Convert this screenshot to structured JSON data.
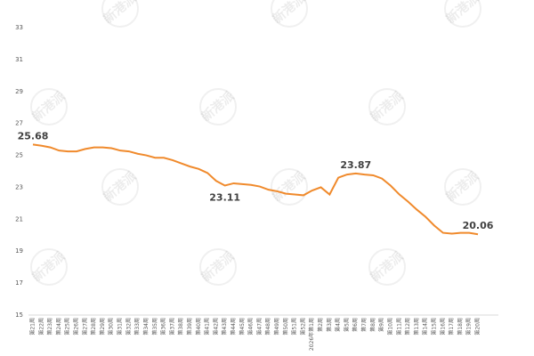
{
  "chart_data": {
    "type": "line",
    "watermark": "新港派",
    "categories": [
      "第21周",
      "第22周",
      "第23周",
      "第24周",
      "第25周",
      "第26周",
      "第27周",
      "第28周",
      "第29周",
      "第30周",
      "第31周",
      "第32周",
      "第33周",
      "第34周",
      "第35周",
      "第36周",
      "第37周",
      "第38周",
      "第39周",
      "第40周",
      "第41周",
      "第42周",
      "第43周",
      "第44周",
      "第45周",
      "第46周",
      "第47周",
      "第48周",
      "第49周",
      "第50周",
      "第51周",
      "第52周",
      "2026年第1周",
      "第2周",
      "第3周",
      "第4周",
      "第5周",
      "第6周",
      "第7周",
      "第8周",
      "第9周",
      "第10周",
      "第11周",
      "第12周",
      "第13周",
      "第14周",
      "第15周",
      "第16周",
      "第17周",
      "第18周",
      "第19周",
      "第20周"
    ],
    "series": [
      {
        "color": "#f08a2c",
        "values": [
          25.68,
          25.6,
          25.5,
          25.3,
          25.25,
          25.25,
          25.4,
          25.5,
          25.5,
          25.45,
          25.3,
          25.25,
          25.1,
          25.0,
          24.85,
          24.85,
          24.7,
          24.5,
          24.3,
          24.15,
          23.9,
          23.4,
          23.11,
          23.25,
          23.2,
          23.15,
          23.05,
          22.85,
          22.75,
          22.6,
          22.55,
          22.5,
          22.8,
          23.0,
          22.55,
          23.6,
          23.8,
          23.87,
          23.8,
          23.75,
          23.55,
          23.1,
          22.55,
          22.1,
          21.6,
          21.15,
          20.6,
          20.15,
          20.1,
          20.15,
          20.15,
          20.06
        ],
        "value_labels": [
          "25.68",
          null,
          null,
          null,
          null,
          null,
          null,
          null,
          null,
          null,
          null,
          null,
          null,
          null,
          null,
          null,
          null,
          null,
          null,
          null,
          null,
          null,
          "23.11",
          null,
          null,
          null,
          null,
          null,
          null,
          null,
          null,
          null,
          null,
          null,
          null,
          null,
          null,
          "23.87",
          null,
          null,
          null,
          null,
          null,
          null,
          null,
          null,
          null,
          null,
          null,
          null,
          null,
          "20.06"
        ]
      }
    ],
    "ylim": [
      15,
      33
    ],
    "yticks": [
      15,
      17,
      19,
      21,
      23,
      25,
      27,
      29,
      31,
      33
    ]
  }
}
